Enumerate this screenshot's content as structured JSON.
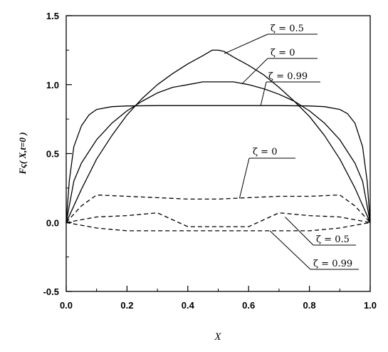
{
  "chart_data": {
    "type": "line",
    "title": "",
    "xlabel": "X",
    "ylabel": "Fς( X,t=0 )",
    "xlim": [
      0.0,
      1.0
    ],
    "ylim": [
      -0.5,
      1.5
    ],
    "xticks": [
      "0.0",
      "0.2",
      "0.4",
      "0.6",
      "0.8",
      "1.0"
    ],
    "yticks": [
      "-0.5",
      "0.0",
      "0.5",
      "1.0",
      "1.5"
    ],
    "grid": false,
    "legend": "none",
    "series": [
      {
        "name": "ζ = 0.5",
        "style": "solid",
        "x": [
          0,
          0.05,
          0.1,
          0.15,
          0.2,
          0.25,
          0.3,
          0.35,
          0.4,
          0.45,
          0.48,
          0.5,
          0.52,
          0.55,
          0.6,
          0.65,
          0.7,
          0.75,
          0.8,
          0.85,
          0.9,
          0.95,
          1.0
        ],
        "y": [
          0,
          0.24,
          0.46,
          0.63,
          0.78,
          0.9,
          1.0,
          1.08,
          1.15,
          1.21,
          1.25,
          1.25,
          1.24,
          1.2,
          1.14,
          1.07,
          0.98,
          0.88,
          0.77,
          0.63,
          0.46,
          0.25,
          0
        ]
      },
      {
        "name": "ζ = 0",
        "style": "solid",
        "x": [
          0,
          0.025,
          0.05,
          0.1,
          0.15,
          0.2,
          0.25,
          0.3,
          0.35,
          0.4,
          0.45,
          0.5,
          0.55,
          0.6,
          0.65,
          0.7,
          0.75,
          0.8,
          0.85,
          0.9,
          0.95,
          0.975,
          1.0
        ],
        "y": [
          0,
          0.3,
          0.43,
          0.6,
          0.72,
          0.81,
          0.88,
          0.94,
          0.98,
          1.0,
          1.02,
          1.02,
          1.02,
          1.0,
          0.97,
          0.93,
          0.88,
          0.81,
          0.72,
          0.6,
          0.43,
          0.3,
          0
        ]
      },
      {
        "name": "ζ = 0.99",
        "style": "solid",
        "x": [
          0,
          0.01,
          0.025,
          0.05,
          0.075,
          0.1,
          0.15,
          0.2,
          0.3,
          0.4,
          0.5,
          0.6,
          0.7,
          0.8,
          0.85,
          0.9,
          0.925,
          0.95,
          0.975,
          0.99,
          1.0
        ],
        "y": [
          0,
          0.3,
          0.55,
          0.7,
          0.78,
          0.82,
          0.84,
          0.845,
          0.848,
          0.848,
          0.848,
          0.848,
          0.848,
          0.845,
          0.84,
          0.82,
          0.79,
          0.72,
          0.55,
          0.3,
          0
        ]
      },
      {
        "name": "ζ = 0",
        "style": "dashed",
        "x": [
          0,
          0.05,
          0.1,
          0.2,
          0.3,
          0.4,
          0.5,
          0.6,
          0.7,
          0.8,
          0.9,
          0.95,
          1.0
        ],
        "y": [
          0,
          0.12,
          0.2,
          0.19,
          0.18,
          0.17,
          0.17,
          0.18,
          0.19,
          0.19,
          0.2,
          0.12,
          0
        ]
      },
      {
        "name": "ζ = 0.5",
        "style": "dashed",
        "x": [
          0,
          0.05,
          0.1,
          0.2,
          0.3,
          0.35,
          0.4,
          0.5,
          0.6,
          0.65,
          0.7,
          0.8,
          0.9,
          0.95,
          1.0
        ],
        "y": [
          0,
          0.02,
          0.04,
          0.05,
          0.07,
          0.02,
          -0.03,
          -0.03,
          -0.03,
          0.02,
          0.07,
          0.05,
          0.04,
          0.02,
          0
        ]
      },
      {
        "name": "ζ = 0.99",
        "style": "dashed",
        "x": [
          0,
          0.05,
          0.1,
          0.2,
          0.3,
          0.4,
          0.5,
          0.6,
          0.7,
          0.8,
          0.9,
          0.95,
          1.0
        ],
        "y": [
          0,
          -0.02,
          -0.04,
          -0.06,
          -0.06,
          -0.06,
          -0.06,
          -0.06,
          -0.06,
          -0.06,
          -0.04,
          -0.02,
          0
        ]
      }
    ],
    "annotations": [
      {
        "text": "ζ = 0.5",
        "series": 0,
        "x": 0.52,
        "y": 1.225
      },
      {
        "text": "ζ = 0",
        "series": 1,
        "x": 0.58,
        "y": 1.01
      },
      {
        "text": "ζ = 0.99",
        "series": 2,
        "x": 0.64,
        "y": 0.85
      },
      {
        "text": "ζ = 0",
        "series": 3,
        "x": 0.57,
        "y": 0.175
      },
      {
        "text": "ζ = 0.5",
        "series": 4,
        "x": 0.72,
        "y": 0.04
      },
      {
        "text": "ζ = 0.99",
        "series": 5,
        "x": 0.67,
        "y": -0.06
      }
    ]
  }
}
